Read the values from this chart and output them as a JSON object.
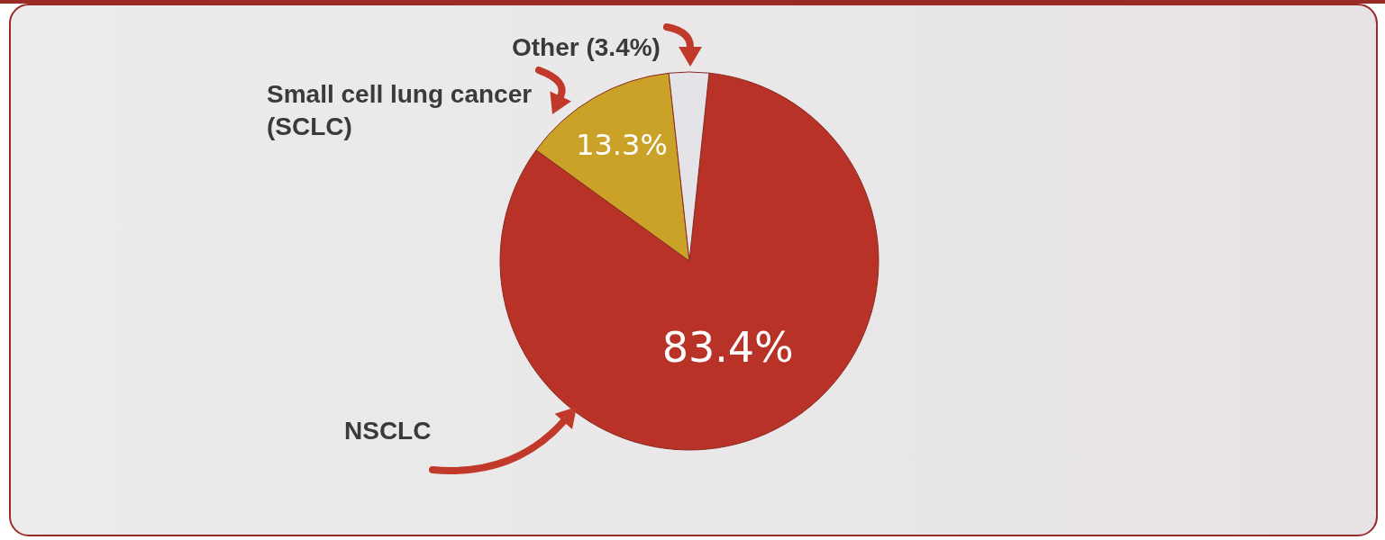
{
  "chart_data": {
    "type": "pie",
    "categories": [
      "NSCLC",
      "Small cell lung cancer (SCLC)",
      "Other (3.4%)"
    ],
    "values": [
      83.4,
      13.3,
      3.4
    ],
    "colors": [
      "#b83228",
      "#c9a227",
      "#e4e4e8"
    ],
    "value_labels": [
      "83.4%",
      "13.3%",
      null
    ],
    "legend": false
  }
}
